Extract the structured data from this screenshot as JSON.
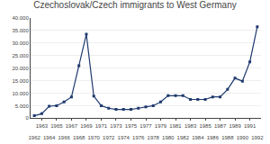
{
  "chart_data": {
    "type": "line",
    "title": "Czechoslovak/Czech immigrants to West Germany",
    "x": [
      1962,
      1963,
      1964,
      1965,
      1966,
      1967,
      1968,
      1969,
      1970,
      1971,
      1972,
      1973,
      1974,
      1975,
      1976,
      1977,
      1978,
      1979,
      1980,
      1981,
      1982,
      1983,
      1984,
      1985,
      1986,
      1987,
      1988,
      1989,
      1990,
      1991,
      1992
    ],
    "values": [
      1000,
      1800,
      4800,
      5000,
      6500,
      8500,
      21000,
      33500,
      8800,
      5000,
      4000,
      3500,
      3500,
      3500,
      4000,
      4500,
      5000,
      6500,
      9000,
      9000,
      9000,
      7500,
      7500,
      7500,
      8500,
      8500,
      11500,
      16000,
      14800,
      22500,
      36500
    ],
    "color": "#1F3A6E",
    "marker": "square",
    "xlim": [
      1961.5,
      1992.5
    ],
    "xticks": [
      1962,
      1963,
      1964,
      1965,
      1966,
      1967,
      1968,
      1969,
      1970,
      1971,
      1972,
      1973,
      1974,
      1975,
      1976,
      1977,
      1978,
      1979,
      1980,
      1981,
      1982,
      1983,
      1984,
      1985,
      1986,
      1987,
      1988,
      1989,
      1990,
      1991,
      1992
    ],
    "ylim": [
      0,
      40000
    ],
    "yticks": [
      0,
      {
        "value": 5000,
        "label": "5.000"
      },
      {
        "value": 10000,
        "label": "10.000"
      },
      {
        "value": 15000,
        "label": "15.000"
      },
      {
        "value": 20000,
        "label": "20.000"
      },
      {
        "value": 25000,
        "label": "25.000"
      },
      {
        "value": 30000,
        "label": "30.000"
      },
      {
        "value": 35000,
        "label": "35.000"
      },
      {
        "value": 40000,
        "label": "40.000"
      }
    ],
    "grid": true
  }
}
